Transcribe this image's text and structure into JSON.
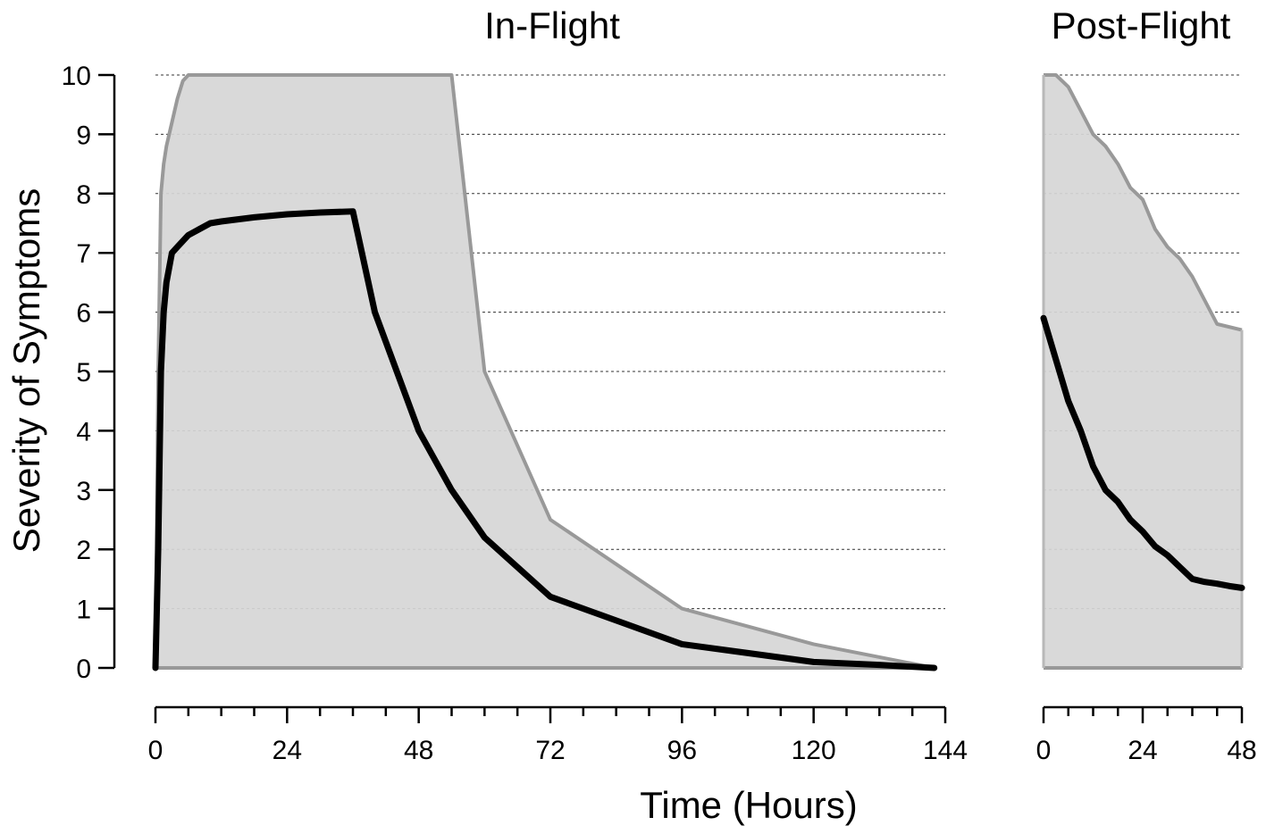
{
  "chart_data": [
    {
      "type": "area",
      "title": "In-Flight",
      "xlabel": "Time (Hours)",
      "ylabel": "Severity of Symptoms",
      "xlim": [
        0,
        144
      ],
      "ylim": [
        0,
        10
      ],
      "xticks": [
        0,
        24,
        48,
        72,
        96,
        120,
        144
      ],
      "x_minor_step": 6,
      "yticks": [
        0,
        1,
        2,
        3,
        4,
        5,
        6,
        7,
        8,
        9,
        10
      ],
      "grid": "horizontal dashed",
      "band_upper": {
        "x": [
          0,
          0.5,
          1,
          1.5,
          2,
          3,
          4,
          5,
          6,
          54,
          60,
          72,
          96,
          120,
          142
        ],
        "y": [
          0,
          5,
          8,
          8.5,
          8.8,
          9.2,
          9.6,
          9.9,
          10,
          10,
          5,
          2.5,
          1,
          0.4,
          0
        ]
      },
      "band_lower": {
        "x": [
          0,
          142
        ],
        "y": [
          0,
          0
        ]
      },
      "series": [
        {
          "x": [
            0,
            0.5,
            1,
            1.5,
            2,
            3,
            4,
            6,
            8,
            10,
            12,
            18,
            24,
            30,
            36,
            40,
            48,
            54,
            60,
            72,
            84,
            96,
            108,
            120,
            132,
            142
          ],
          "y": [
            0,
            2,
            5,
            6,
            6.5,
            7,
            7.1,
            7.3,
            7.4,
            7.5,
            7.53,
            7.6,
            7.65,
            7.68,
            7.7,
            6,
            4,
            3,
            2.2,
            1.2,
            0.8,
            0.4,
            0.25,
            0.1,
            0.05,
            0
          ]
        }
      ]
    },
    {
      "type": "area",
      "title": "Post-Flight",
      "xlabel": "",
      "ylabel": "",
      "xlim": [
        0,
        48
      ],
      "ylim": [
        0,
        10
      ],
      "xticks": [
        0,
        24,
        48
      ],
      "x_minor_step": 6,
      "grid": "horizontal dashed",
      "band_upper": {
        "x": [
          0,
          3,
          6,
          9,
          12,
          15,
          18,
          21,
          24,
          27,
          30,
          33,
          36,
          42,
          48
        ],
        "y": [
          10,
          10,
          9.8,
          9.4,
          9,
          8.8,
          8.5,
          8.1,
          7.9,
          7.4,
          7.1,
          6.9,
          6.6,
          5.8,
          5.7
        ]
      },
      "band_lower": {
        "x": [
          0,
          48
        ],
        "y": [
          0,
          0
        ]
      },
      "series": [
        {
          "x": [
            0,
            3,
            6,
            9,
            12,
            15,
            18,
            21,
            24,
            27,
            30,
            33,
            36,
            39,
            42,
            45,
            48
          ],
          "y": [
            5.9,
            5.2,
            4.5,
            4.0,
            3.4,
            3.0,
            2.8,
            2.5,
            2.3,
            2.05,
            1.9,
            1.7,
            1.5,
            1.45,
            1.42,
            1.38,
            1.35
          ]
        }
      ]
    }
  ],
  "colors": {
    "band_fill": "#d6d6d6",
    "band_edge": "#999999",
    "series_line": "#000000",
    "grid": "#333333",
    "axis": "#000000"
  }
}
